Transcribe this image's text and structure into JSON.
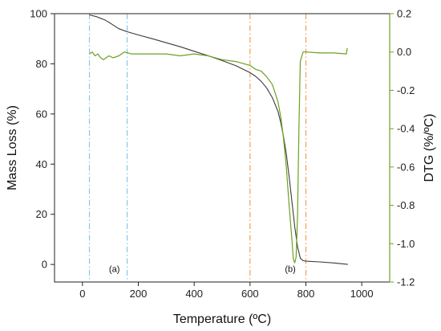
{
  "chart_data": {
    "type": "line",
    "xlabel": "Temperature (ºC)",
    "ylabel_left": "Mass Loss (%)",
    "ylabel_right": "DTG (%/ºC)",
    "xlim": [
      -100,
      1100
    ],
    "ylim_left": [
      -7,
      100
    ],
    "ylim_right": [
      -1.2,
      0.2
    ],
    "x_ticks": [
      0,
      200,
      400,
      600,
      800,
      1000
    ],
    "y_left_ticks": [
      0,
      20,
      40,
      60,
      80,
      100
    ],
    "y_right_ticks": [
      -1.2,
      -1.0,
      -0.8,
      -0.6,
      -0.4,
      -0.2,
      0.0,
      0.2
    ],
    "y_right_tick_labels": [
      "-1.2",
      "-1.0",
      "-0.8",
      "-0.6",
      "-0.4",
      "-0.2",
      "0.0",
      "0.2"
    ],
    "grid": false,
    "legend": "none",
    "colors": {
      "mass_loss": "#3a3a3a",
      "dtg": "#6aa121",
      "axis_right": "#6aa121",
      "vline_a": "#87c8ea",
      "vline_b": "#f0a058"
    },
    "series": [
      {
        "axis": "left",
        "x": [
          25,
          50,
          80,
          100,
          130,
          160,
          200,
          250,
          300,
          350,
          400,
          450,
          500,
          550,
          600,
          620,
          640,
          660,
          680,
          700,
          710,
          720,
          730,
          740,
          750,
          760,
          770,
          780,
          790,
          800,
          850,
          900,
          950
        ],
        "y": [
          99.5,
          98.8,
          97.5,
          96.2,
          94.0,
          92.8,
          91.5,
          90.0,
          88.4,
          86.8,
          85.0,
          83.2,
          81.3,
          79.2,
          76.5,
          75.0,
          73.0,
          70.3,
          66.5,
          61.0,
          56.5,
          51.0,
          44.0,
          35.0,
          25.0,
          15.0,
          7.0,
          2.5,
          1.5,
          1.3,
          1.0,
          0.6,
          0.0
        ]
      },
      {
        "axis": "right",
        "x": [
          25,
          35,
          45,
          55,
          65,
          75,
          85,
          95,
          110,
          130,
          150,
          175,
          200,
          250,
          300,
          350,
          400,
          450,
          500,
          550,
          600,
          620,
          640,
          660,
          680,
          700,
          710,
          720,
          730,
          740,
          750,
          755,
          760,
          765,
          770,
          775,
          780,
          790,
          800,
          850,
          900,
          945,
          948
        ],
        "y": [
          -0.01,
          0.0,
          -0.02,
          -0.01,
          -0.03,
          -0.04,
          -0.03,
          -0.02,
          -0.03,
          -0.02,
          0.0,
          -0.01,
          -0.01,
          -0.01,
          -0.01,
          -0.02,
          -0.01,
          -0.02,
          -0.04,
          -0.05,
          -0.07,
          -0.09,
          -0.1,
          -0.13,
          -0.17,
          -0.26,
          -0.34,
          -0.45,
          -0.6,
          -0.8,
          -0.98,
          -1.08,
          -1.1,
          -1.07,
          -0.85,
          -0.4,
          -0.05,
          0.0,
          0.0,
          -0.005,
          -0.005,
          -0.01,
          0.02
        ]
      }
    ],
    "vlines": [
      {
        "x": 25,
        "color_key": "vline_a"
      },
      {
        "x": 160,
        "color_key": "vline_a"
      },
      {
        "x": 600,
        "color_key": "vline_b"
      },
      {
        "x": 800,
        "color_key": "vline_b"
      }
    ],
    "annotations": [
      {
        "text": "(a)",
        "x": 95,
        "y": -3
      },
      {
        "text": "(b)",
        "x": 725,
        "y": -3
      }
    ]
  }
}
